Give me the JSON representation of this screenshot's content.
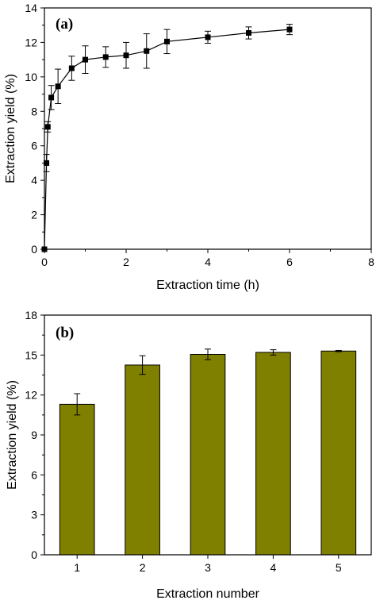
{
  "chart_data": [
    {
      "type": "line",
      "panel_label": "(a)",
      "title": "",
      "xlabel": "Extraction time (h)",
      "ylabel": "Extraction yield (%)",
      "xlim": [
        0,
        8
      ],
      "ylim": [
        0,
        14
      ],
      "xticks": [
        0,
        2,
        4,
        6,
        8
      ],
      "yticks": [
        0,
        2,
        4,
        6,
        8,
        10,
        12,
        14
      ],
      "marker": "square",
      "color": "#000000",
      "series": [
        {
          "x": [
            0,
            0.05,
            0.083,
            0.167,
            0.333,
            0.667,
            1,
            1.5,
            2,
            2.5,
            3,
            4,
            5,
            6
          ],
          "y": [
            0,
            5.0,
            7.1,
            8.8,
            9.45,
            10.5,
            11.0,
            11.15,
            11.25,
            11.5,
            12.05,
            12.3,
            12.55,
            12.75
          ],
          "err": [
            0,
            0.5,
            0.3,
            0.7,
            1.0,
            0.7,
            0.8,
            0.6,
            0.75,
            1.0,
            0.7,
            0.35,
            0.35,
            0.3
          ]
        }
      ]
    },
    {
      "type": "bar",
      "panel_label": "(b)",
      "title": "",
      "xlabel": "Extraction number",
      "ylabel": "Extraction yield (%)",
      "xlim": [
        0.5,
        5.5
      ],
      "ylim": [
        0,
        18
      ],
      "yticks": [
        0,
        3,
        6,
        9,
        12,
        15,
        18
      ],
      "categories": [
        "1",
        "2",
        "3",
        "4",
        "5"
      ],
      "bar_color": "#7f7f00",
      "series": [
        {
          "values": [
            11.3,
            14.25,
            15.05,
            15.2,
            15.3
          ],
          "err": [
            0.8,
            0.7,
            0.4,
            0.2,
            0.05
          ]
        }
      ]
    }
  ]
}
